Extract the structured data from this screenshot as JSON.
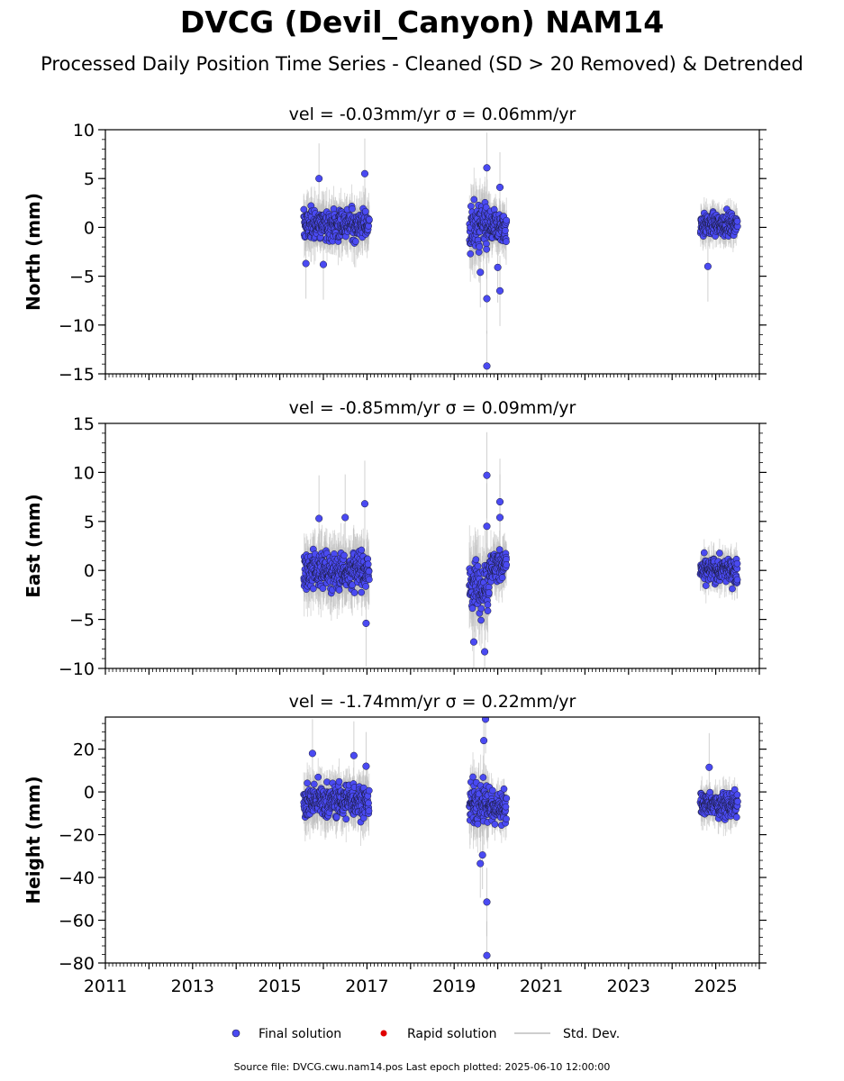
{
  "header": {
    "title": "DVCG (Devil_Canyon) NAM14",
    "subtitle": "Processed Daily Position Time Series - Cleaned (SD > 20 Removed) & Detrended"
  },
  "colors": {
    "final": "#4a4af2",
    "rapid": "#e00000",
    "stddev": "#bdbdbd",
    "edge": "#1a1a3a"
  },
  "chart_data": [
    {
      "type": "scatter",
      "title": "vel = -0.03mm/yr   σ = 0.06mm/yr",
      "ylabel": "North (mm)",
      "xlim": [
        2011,
        2026
      ],
      "ylim": [
        -15,
        10
      ],
      "yticks": [
        "10",
        "5",
        "0",
        "−5",
        "−10",
        "−15"
      ],
      "ytick_values": [
        10,
        5,
        0,
        -5,
        -10,
        -15
      ],
      "segments": [
        {
          "x": [
            2015.55,
            2017.05
          ],
          "mean": 0.3,
          "sd": 1.3,
          "err": 1.8
        },
        {
          "x": [
            2019.35,
            2019.8
          ],
          "mean": 0.0,
          "sd": 2.0,
          "err": 2.5
        },
        {
          "x": [
            2019.8,
            2020.2
          ],
          "mean": 0.0,
          "sd": 1.4,
          "err": 1.6
        },
        {
          "x": [
            2024.65,
            2025.5
          ],
          "mean": 0.3,
          "sd": 0.9,
          "err": 1.2
        }
      ],
      "outliers": [
        [
          2015.9,
          5.0
        ],
        [
          2016.95,
          5.5
        ],
        [
          2019.75,
          6.1
        ],
        [
          2019.75,
          -14.2
        ],
        [
          2019.75,
          -7.3
        ],
        [
          2020.0,
          -4.1
        ],
        [
          2020.05,
          -6.5
        ],
        [
          2015.6,
          -3.7
        ],
        [
          2016.0,
          -3.8
        ],
        [
          2024.82,
          -4.0
        ],
        [
          2019.6,
          -4.6
        ],
        [
          2020.05,
          4.1
        ]
      ]
    },
    {
      "type": "scatter",
      "title": "vel = -0.85mm/yr   σ = 0.09mm/yr",
      "ylabel": "East (mm)",
      "xlim": [
        2011,
        2026
      ],
      "ylim": [
        -10,
        15
      ],
      "yticks": [
        "15",
        "10",
        "5",
        "0",
        "−5",
        "−10"
      ],
      "ytick_values": [
        15,
        10,
        5,
        0,
        -5,
        -10
      ],
      "segments": [
        {
          "x": [
            2015.55,
            2017.05
          ],
          "mean": 0.0,
          "sd": 1.6,
          "err": 2.2
        },
        {
          "x": [
            2019.35,
            2019.8
          ],
          "mean": -1.5,
          "sd": 2.0,
          "err": 3.0
        },
        {
          "x": [
            2019.8,
            2020.2
          ],
          "mean": 0.5,
          "sd": 1.4,
          "err": 1.8
        },
        {
          "x": [
            2024.65,
            2025.5
          ],
          "mean": 0.0,
          "sd": 1.0,
          "err": 1.3
        }
      ],
      "outliers": [
        [
          2019.75,
          9.7
        ],
        [
          2020.05,
          7.0
        ],
        [
          2016.95,
          6.8
        ],
        [
          2015.9,
          5.3
        ],
        [
          2016.5,
          5.4
        ],
        [
          2019.45,
          -7.3
        ],
        [
          2019.7,
          -8.3
        ],
        [
          2016.98,
          -5.4
        ],
        [
          2020.05,
          5.4
        ],
        [
          2019.75,
          4.5
        ]
      ]
    },
    {
      "type": "scatter",
      "title": "vel = -1.74mm/yr   σ = 0.22mm/yr",
      "ylabel": "Height (mm)",
      "xlim": [
        2011,
        2026
      ],
      "ylim": [
        -80,
        35
      ],
      "yticks": [
        "20",
        "0",
        "−20",
        "−40",
        "−60",
        "−80"
      ],
      "ytick_values": [
        20,
        0,
        -20,
        -40,
        -60,
        -80
      ],
      "xticks": [
        "2011",
        "2013",
        "2015",
        "2017",
        "2019",
        "2021",
        "2023",
        "2025"
      ],
      "xtick_values": [
        2011,
        2013,
        2015,
        2017,
        2019,
        2021,
        2023,
        2025
      ],
      "segments": [
        {
          "x": [
            2015.55,
            2017.05
          ],
          "mean": -4.0,
          "sd": 6.5,
          "err": 8.0
        },
        {
          "x": [
            2019.35,
            2019.8
          ],
          "mean": -5.0,
          "sd": 8.0,
          "err": 10.0
        },
        {
          "x": [
            2019.8,
            2020.2
          ],
          "mean": -7.0,
          "sd": 6.0,
          "err": 7.0
        },
        {
          "x": [
            2024.65,
            2025.5
          ],
          "mean": -6.0,
          "sd": 4.5,
          "err": 6.0
        }
      ],
      "outliers": [
        [
          2019.75,
          -76.5
        ],
        [
          2019.75,
          -51.5
        ],
        [
          2019.6,
          -33.5
        ],
        [
          2019.65,
          -29.5
        ],
        [
          2019.72,
          34.0
        ],
        [
          2019.68,
          24.0
        ],
        [
          2015.75,
          18.0
        ],
        [
          2016.7,
          17.0
        ],
        [
          2016.98,
          12.0
        ],
        [
          2024.85,
          11.5
        ]
      ]
    }
  ],
  "legend": {
    "final_label": "Final solution",
    "rapid_label": "Rapid solution",
    "stddev_label": "Std. Dev."
  },
  "footer": {
    "text": "Source file: DVCG.cwu.nam14.pos  Last epoch plotted: 2025-06-10 12:00:00"
  }
}
